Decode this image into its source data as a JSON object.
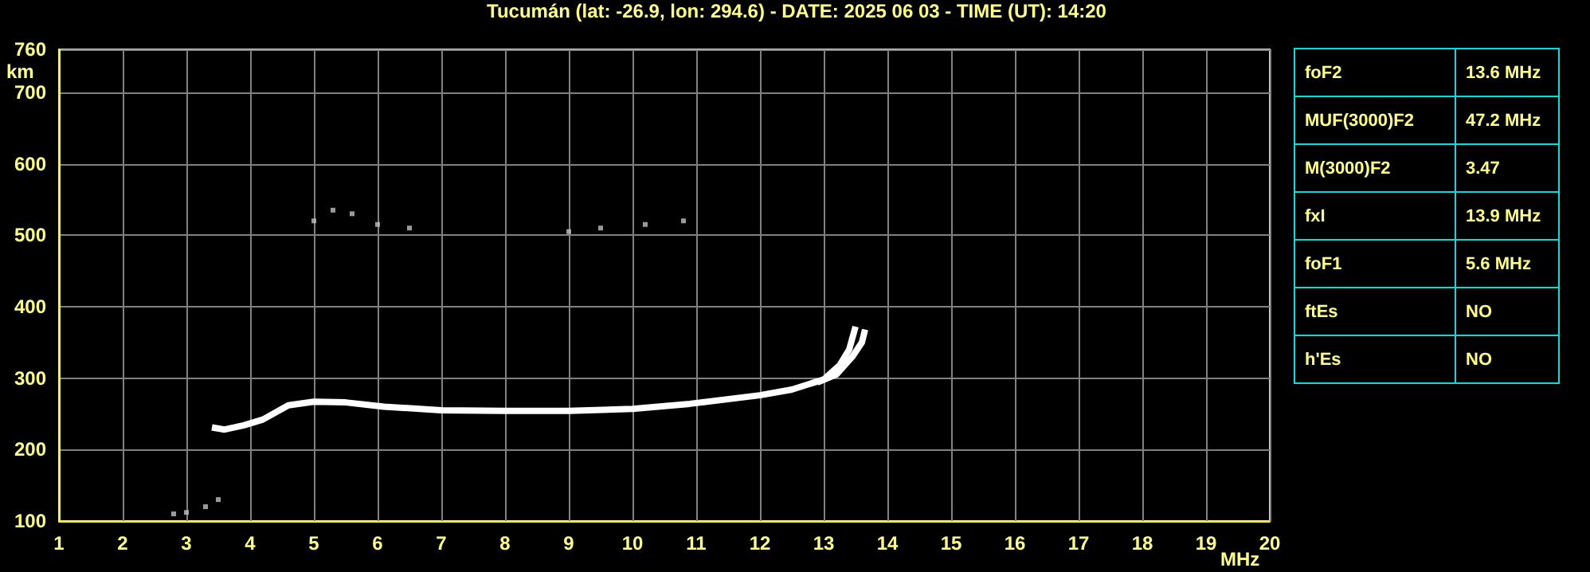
{
  "chart_data": {
    "type": "line",
    "title": "Tucumán (lat: -26.9, lon: 294.6) - DATE: 2025 06 03 - TIME (UT): 14:20",
    "xlabel": "MHz",
    "ylabel": "km",
    "xlim": [
      1,
      20
    ],
    "xticks": [
      1,
      2,
      3,
      4,
      5,
      6,
      7,
      8,
      9,
      10,
      11,
      12,
      13,
      14,
      15,
      16,
      17,
      18,
      19,
      20
    ],
    "ylim": [
      100,
      760
    ],
    "yticks": [
      100,
      200,
      300,
      400,
      500,
      600,
      700,
      760
    ],
    "grid": true,
    "series": [
      {
        "color": "#ffffff",
        "x": [
          3.4,
          3.6,
          3.9,
          4.2,
          4.6,
          5.0,
          5.5,
          6.1,
          7.0,
          8.0,
          9.0,
          10.0,
          10.9,
          12.0,
          12.5,
          13.0,
          13.25,
          13.4,
          13.5
        ],
        "values": [
          231,
          228,
          234,
          242,
          262,
          267,
          266,
          260,
          255,
          254,
          254,
          257,
          264,
          276,
          284,
          298,
          318,
          340,
          372
        ]
      },
      {
        "color": "#ffffff",
        "x": [
          12.9,
          13.2,
          13.45,
          13.6,
          13.65
        ],
        "values": [
          294,
          305,
          330,
          350,
          368
        ]
      },
      {
        "type": "scatter",
        "color": "#c0c0c0",
        "x": [
          5.0,
          5.3,
          5.6,
          6.0,
          6.5,
          9.0,
          9.5,
          10.2,
          10.8,
          2.8,
          3.0,
          3.3,
          3.5
        ],
        "values": [
          520,
          535,
          530,
          515,
          510,
          505,
          510,
          515,
          520,
          110,
          112,
          120,
          130
        ]
      }
    ],
    "annotations": [
      "foF2",
      "13.6 MHz",
      "MUF(3000)F2",
      "47.2 MHz",
      "M(3000)F2",
      "3.47",
      "fxI",
      "13.9 MHz",
      "foF1",
      "5.6 MHz",
      "ftEs",
      "NO",
      "h'Es",
      "NO"
    ]
  }
}
